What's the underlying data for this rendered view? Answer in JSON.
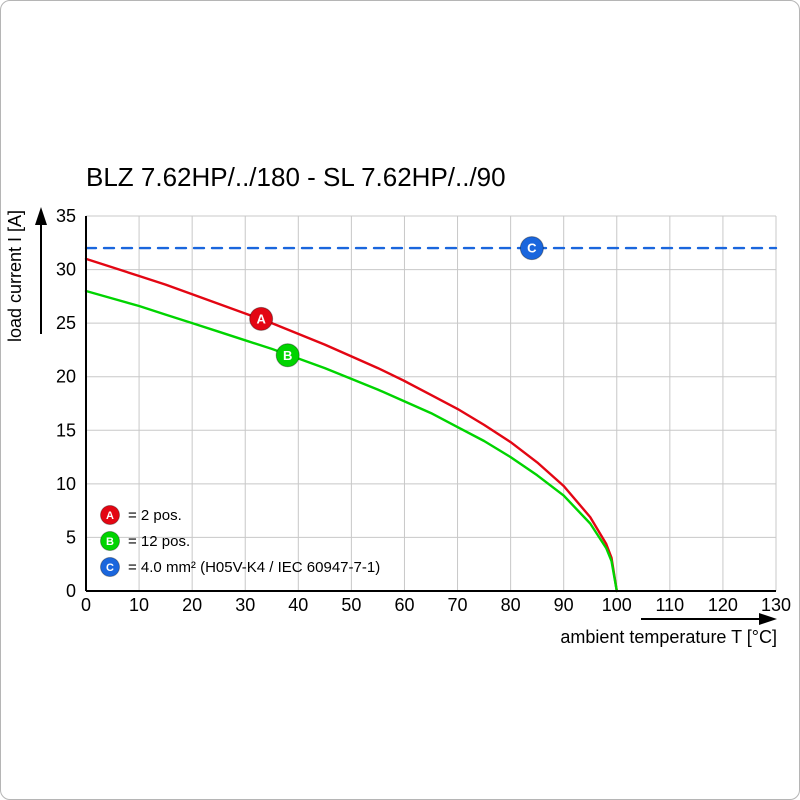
{
  "chart_data": {
    "type": "line",
    "title": "BLZ 7.62HP/../180 - SL 7.62HP/../90",
    "xlabel": "ambient temperature T [°C]",
    "ylabel": "load current I [A]",
    "xlim": [
      0,
      130
    ],
    "ylim": [
      0,
      35
    ],
    "xticks": [
      0,
      10,
      20,
      30,
      40,
      50,
      60,
      70,
      80,
      90,
      100,
      110,
      120,
      130
    ],
    "yticks": [
      0,
      5,
      10,
      15,
      20,
      25,
      30,
      35
    ],
    "grid": true,
    "grid_color": "#c8c8c8",
    "legend_position": "lower-left",
    "series": [
      {
        "name": "A",
        "label": "2 pos.",
        "color": "#e30613",
        "style": "solid",
        "x": [
          0,
          5,
          10,
          15,
          20,
          25,
          30,
          35,
          40,
          45,
          50,
          55,
          60,
          65,
          70,
          75,
          80,
          85,
          90,
          95,
          98,
          99,
          100
        ],
        "y": [
          31.0,
          30.2,
          29.4,
          28.6,
          27.7,
          26.8,
          25.9,
          25.0,
          24.0,
          23.0,
          21.9,
          20.8,
          19.6,
          18.3,
          17.0,
          15.5,
          13.9,
          12.0,
          9.8,
          6.9,
          4.4,
          3.1,
          0.0
        ],
        "marker": {
          "x": 33,
          "y": 25.4
        }
      },
      {
        "name": "B",
        "label": "12 pos.",
        "color": "#00d400",
        "style": "solid",
        "x": [
          0,
          5,
          10,
          15,
          20,
          25,
          30,
          35,
          40,
          45,
          50,
          55,
          60,
          65,
          70,
          75,
          80,
          85,
          90,
          95,
          98,
          99,
          100
        ],
        "y": [
          28.0,
          27.3,
          26.6,
          25.8,
          25.0,
          24.2,
          23.4,
          22.6,
          21.7,
          20.8,
          19.8,
          18.8,
          17.7,
          16.6,
          15.3,
          14.0,
          12.5,
          10.8,
          8.9,
          6.3,
          4.0,
          2.8,
          0.0
        ],
        "marker": {
          "x": 38,
          "y": 22.0
        }
      },
      {
        "name": "C",
        "label": "4.0 mm² (H05V-K4 / IEC 60947-7-1)",
        "color": "#1a66dd",
        "style": "dashed",
        "x": [
          0,
          130
        ],
        "y": [
          32,
          32
        ],
        "marker": {
          "x": 84,
          "y": 32
        }
      }
    ],
    "legend": [
      {
        "id": "A",
        "text": "= 2 pos."
      },
      {
        "id": "B",
        "text": "= 12 pos."
      },
      {
        "id": "C",
        "text": "= 4.0 mm² (H05V-K4 / IEC 60947-7-1)"
      }
    ]
  }
}
